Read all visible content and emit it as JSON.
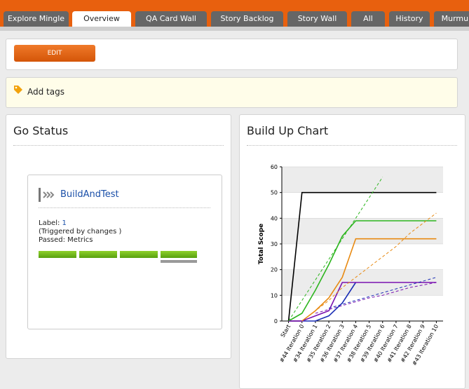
{
  "tabs": [
    "Explore Mingle",
    "Overview",
    "QA Card Wall",
    "Story Backlog",
    "Story Wall",
    "All",
    "History",
    "Murmurs"
  ],
  "edit_button": "EDIT",
  "tags": "Add tags",
  "go_status": {
    "title": "Go Status",
    "pipeline": "BuildAndTest",
    "label_text": "Label:",
    "label_value": "1",
    "trigger": "(Triggered by changes )",
    "passed": "Passed: Metrics"
  },
  "chart_data": {
    "type": "line",
    "title": "Build Up Chart",
    "y_label": "Total Scope",
    "categories": [
      "Start",
      "#44 Iteration 0",
      "#34 Iteration 1",
      "#35 Iteration 2",
      "#36 Iteration 3",
      "#37 Iteration 4",
      "#38 Iteration 5",
      "#39 Iteration 6",
      "#40 Iteration 7",
      "#41 Iteration 8",
      "#42 Iteration 9",
      "#43 Iteration 10"
    ],
    "ylim": [
      0,
      60
    ],
    "yticks": [
      0,
      10,
      20,
      30,
      40,
      50,
      60
    ],
    "grid": true,
    "series": [
      {
        "color": "#000000",
        "dashed": false,
        "values": [
          0,
          50,
          50,
          50,
          50,
          50,
          50,
          50,
          50,
          50,
          50,
          50
        ]
      },
      {
        "color": "#2db51f",
        "dashed": false,
        "values": [
          0,
          3,
          12,
          22,
          33,
          39,
          39,
          39,
          39,
          39,
          39,
          39
        ]
      },
      {
        "color": "#e88a12",
        "dashed": false,
        "values": [
          0,
          0,
          4,
          9,
          17,
          32,
          32,
          32,
          32,
          32,
          32,
          32
        ]
      },
      {
        "color": "#1a2eb5",
        "dashed": false,
        "values": [
          0,
          0,
          0,
          2,
          7,
          15,
          null,
          null,
          null,
          null,
          null,
          null
        ]
      },
      {
        "color": "#7a12b0",
        "dashed": false,
        "values": [
          0,
          0,
          2,
          4,
          15,
          15,
          15,
          15,
          15,
          15,
          15,
          15
        ]
      },
      {
        "color": "#2db51f",
        "dashed": true,
        "values": [
          0,
          8,
          16,
          24,
          32,
          40,
          48,
          56,
          null,
          null,
          null,
          null
        ]
      },
      {
        "color": "#e88a12",
        "dashed": true,
        "values": [
          null,
          0,
          4,
          8,
          13,
          17,
          21,
          25,
          29,
          34,
          38,
          42
        ]
      },
      {
        "color": "#1a2eb5",
        "dashed": true,
        "values": [
          null,
          null,
          null,
          5,
          6.5,
          8,
          9.5,
          11,
          12.5,
          14,
          15.5,
          17
        ]
      },
      {
        "color": "#7a12b0",
        "dashed": true,
        "values": [
          null,
          null,
          3,
          4.5,
          6,
          7.5,
          9,
          10,
          11.5,
          13,
          14,
          15
        ]
      }
    ]
  }
}
